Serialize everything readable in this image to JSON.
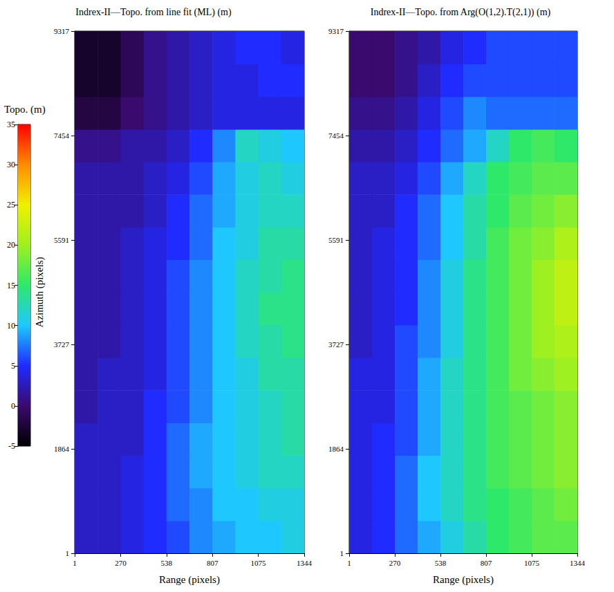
{
  "colorbar": {
    "title": "Topo. (m)",
    "range": [
      -5,
      35
    ],
    "ticks": [
      -5,
      0,
      5,
      10,
      15,
      20,
      25,
      30,
      35
    ],
    "colors": [
      "#000000",
      "#3a0a6e",
      "#1f2bff",
      "#1ec8ff",
      "#2ee86a",
      "#9ef020",
      "#f0f000",
      "#ff8c00",
      "#ff0000"
    ]
  },
  "chart_data": [
    {
      "type": "heatmap",
      "title": "Indrex-II—Topo. from line fit (ML) (m)",
      "xlabel": "Range (pixels)",
      "ylabel": "Azimuth (pixels)",
      "xlim": [
        1,
        1344
      ],
      "ylim": [
        1,
        9317
      ],
      "xticks": [
        1,
        270,
        538,
        807,
        1075,
        1344
      ],
      "yticks": [
        1,
        1864,
        3727,
        5591,
        7454,
        9317
      ],
      "grid": false,
      "x_edges": [
        1,
        135,
        270,
        404,
        538,
        673,
        807,
        941,
        1075,
        1210,
        1344
      ],
      "y_edges": [
        1,
        583,
        1165,
        1747,
        2329,
        2911,
        3493,
        4075,
        4657,
        5239,
        5821,
        6403,
        6985,
        7567,
        8149,
        8731,
        9317
      ],
      "cells": [
        [
          3,
          3,
          4,
          5,
          6,
          8,
          9,
          10,
          10,
          11
        ],
        [
          3,
          3,
          4,
          5,
          7,
          8,
          10,
          10,
          11,
          11
        ],
        [
          3,
          3,
          4,
          5,
          7,
          9,
          10,
          11,
          12,
          12
        ],
        [
          3,
          3,
          3,
          5,
          7,
          9,
          10,
          11,
          12,
          13
        ],
        [
          2,
          3,
          3,
          5,
          6,
          8,
          10,
          11,
          12,
          13
        ],
        [
          2,
          3,
          3,
          4,
          6,
          8,
          10,
          11,
          13,
          13
        ],
        [
          2,
          2,
          3,
          4,
          6,
          8,
          10,
          12,
          13,
          14
        ],
        [
          2,
          2,
          3,
          4,
          6,
          8,
          10,
          12,
          14,
          14
        ],
        [
          2,
          2,
          3,
          4,
          6,
          8,
          10,
          12,
          13,
          14
        ],
        [
          2,
          2,
          3,
          4,
          5,
          7,
          10,
          11,
          13,
          13
        ],
        [
          2,
          2,
          2,
          3,
          5,
          7,
          9,
          11,
          12,
          12
        ],
        [
          2,
          2,
          2,
          3,
          4,
          6,
          9,
          11,
          12,
          11
        ],
        [
          1,
          1,
          2,
          2,
          3,
          5,
          8,
          12,
          11,
          10
        ],
        [
          -2,
          -2,
          0,
          1,
          2,
          3,
          4,
          4,
          4,
          4
        ],
        [
          -3,
          -3,
          -1,
          1,
          2,
          3,
          4,
          4,
          5,
          5
        ],
        [
          -3,
          -3,
          -1,
          1,
          2,
          3,
          4,
          5,
          5,
          4
        ]
      ]
    },
    {
      "type": "heatmap",
      "title": "Indrex-II—Topo. from Arg(O(1,2).T(2,1)) (m)",
      "xlabel": "Range (pixels)",
      "xlim": [
        1,
        1344
      ],
      "ylim": [
        1,
        9317
      ],
      "xticks": [
        1,
        270,
        538,
        807,
        1075,
        1344
      ],
      "yticks": [
        1,
        1864,
        3727,
        5591,
        7454,
        9317
      ],
      "grid": false,
      "x_edges": [
        1,
        135,
        270,
        404,
        538,
        673,
        807,
        941,
        1075,
        1210,
        1344
      ],
      "y_edges": [
        1,
        583,
        1165,
        1747,
        2329,
        2911,
        3493,
        4075,
        4657,
        5239,
        5821,
        6403,
        6985,
        7567,
        8149,
        8731,
        9317
      ],
      "cells": [
        [
          4,
          5,
          7,
          9,
          11,
          13,
          15,
          16,
          17,
          17
        ],
        [
          4,
          5,
          7,
          10,
          12,
          14,
          15,
          16,
          17,
          18
        ],
        [
          4,
          5,
          7,
          10,
          12,
          14,
          16,
          17,
          18,
          19
        ],
        [
          4,
          5,
          6,
          9,
          12,
          14,
          16,
          17,
          18,
          19
        ],
        [
          4,
          4,
          6,
          9,
          12,
          14,
          16,
          17,
          18,
          19
        ],
        [
          4,
          4,
          6,
          9,
          12,
          14,
          16,
          18,
          19,
          20
        ],
        [
          3,
          4,
          6,
          8,
          11,
          14,
          16,
          18,
          20,
          21
        ],
        [
          3,
          4,
          5,
          8,
          11,
          14,
          16,
          18,
          20,
          22
        ],
        [
          3,
          4,
          5,
          8,
          11,
          14,
          16,
          18,
          20,
          22
        ],
        [
          3,
          4,
          5,
          7,
          10,
          13,
          16,
          18,
          19,
          21
        ],
        [
          3,
          3,
          5,
          7,
          10,
          13,
          15,
          17,
          18,
          19
        ],
        [
          3,
          3,
          4,
          6,
          9,
          12,
          15,
          16,
          17,
          17
        ],
        [
          2,
          2,
          3,
          5,
          7,
          9,
          12,
          15,
          16,
          15
        ],
        [
          1,
          1,
          2,
          4,
          6,
          8,
          7,
          7,
          7,
          7
        ],
        [
          0,
          0,
          1,
          3,
          5,
          6,
          6,
          6,
          6,
          6
        ],
        [
          0,
          0,
          1,
          2,
          4,
          5,
          6,
          6,
          6,
          6
        ]
      ]
    }
  ]
}
